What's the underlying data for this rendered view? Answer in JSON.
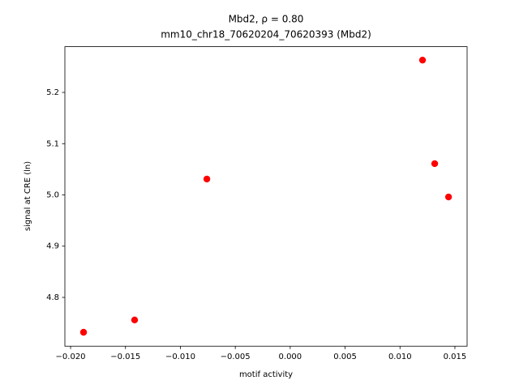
{
  "chart_data": {
    "type": "scatter",
    "title": "Mbd2, ρ = 0.80",
    "subtitle": "mm10_chr18_70620204_70620393 (Mbd2)",
    "x_label": "motif activity",
    "y_label": "signal at CRE (ln)",
    "x": [
      -0.01882,
      -0.01417,
      -0.00759,
      0.01205,
      0.01316,
      0.01442
    ],
    "values": [
      4.732,
      4.756,
      5.031,
      5.263,
      5.061,
      4.996
    ],
    "color": "#ff0000",
    "xlim": [
      -0.02052,
      0.01611
    ],
    "ylim": [
      4.7048,
      5.2892
    ],
    "xticks": [
      {
        "value": -0.02,
        "label": "−0.020"
      },
      {
        "value": -0.015,
        "label": "−0.015"
      },
      {
        "value": -0.01,
        "label": "−0.010"
      },
      {
        "value": -0.005,
        "label": "−0.005"
      },
      {
        "value": 0,
        "label": "0.000"
      },
      {
        "value": 0.005,
        "label": "0.005"
      },
      {
        "value": 0.01,
        "label": "0.010"
      },
      {
        "value": 0.015,
        "label": "0.015"
      }
    ],
    "yticks": [
      4.8,
      4.9,
      {
        "value": 5,
        "label": "5.0"
      },
      5.1,
      5.2
    ]
  }
}
